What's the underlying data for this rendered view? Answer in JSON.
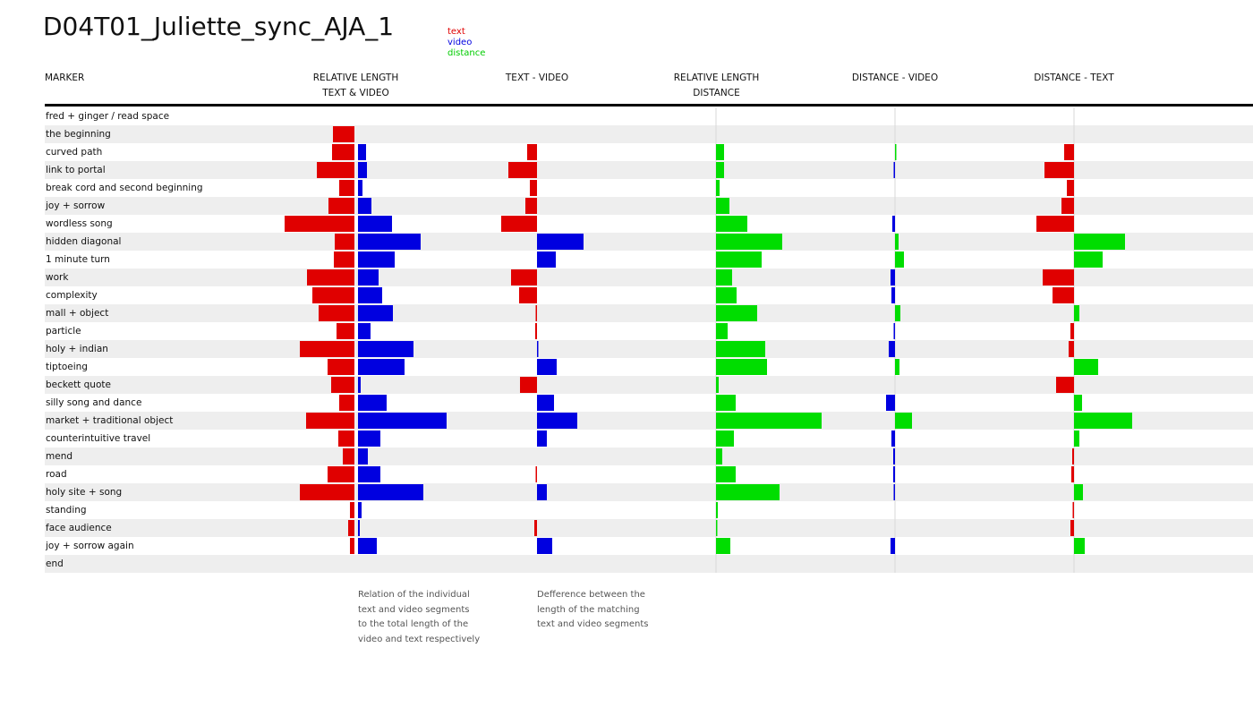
{
  "title": "D04T01_Juliette_sync_AJA_1",
  "legend": {
    "text": {
      "label": "text",
      "color": "#e00000"
    },
    "video": {
      "label": "video",
      "color": "#0000e0"
    },
    "distance": {
      "label": "distance",
      "color": "#00dd00"
    }
  },
  "headers": {
    "marker": "MARKER",
    "rel_tv_1": "RELATIVE LENGTH",
    "rel_tv_2": "TEXT & VIDEO",
    "text_video": "TEXT - VIDEO",
    "rel_dist_1": "RELATIVE LENGTH",
    "rel_dist_2": "DISTANCE",
    "dist_video": "DISTANCE - VIDEO",
    "dist_text": "DISTANCE - TEXT"
  },
  "notes": {
    "relation": [
      "Relation of the individual",
      "text and video segments",
      "to the total length of the",
      "video and text respectively"
    ],
    "difference": [
      "Defference between the",
      "length of the matching",
      "text and video segments"
    ]
  },
  "chart_data": {
    "type": "bar",
    "units": "relative (estimated from bar lengths)",
    "categories": [
      "fred + ginger / read space",
      "the beginning",
      "curved path",
      "link to portal",
      "break cord and second beginning",
      "joy + sorrow",
      "wordless song",
      "hidden diagonal",
      "1 minute turn",
      "work",
      "complexity",
      "mall + object",
      "particle",
      "holy + indian",
      "tiptoeing",
      "beckett quote",
      "silly song and dance",
      "market + traditional object",
      "counterintuitive travel",
      "mend",
      "road",
      "holy site + song",
      "standing",
      "face audience",
      "joy + sorrow again",
      "end"
    ],
    "series": [
      {
        "name": "text",
        "values": [
          0,
          0.24,
          0.25,
          0.42,
          0.17,
          0.29,
          0.78,
          0.22,
          0.23,
          0.53,
          0.47,
          0.4,
          0.2,
          0.61,
          0.3,
          0.26,
          0.17,
          0.54,
          0.18,
          0.13,
          0.3,
          0.61,
          0.05,
          0.07,
          0.05,
          0
        ]
      },
      {
        "name": "video",
        "values": [
          0,
          0,
          0.09,
          0.1,
          0.05,
          0.15,
          0.38,
          0.7,
          0.41,
          0.23,
          0.27,
          0.39,
          0.14,
          0.62,
          0.52,
          0.03,
          0.32,
          0.99,
          0.25,
          0.11,
          0.25,
          0.73,
          0.04,
          0.02,
          0.21,
          0
        ]
      },
      {
        "name": "text - video",
        "values": [
          0,
          0,
          -0.11,
          -0.32,
          -0.08,
          -0.13,
          -0.4,
          0.52,
          0.21,
          -0.29,
          -0.2,
          -0.01,
          -0.02,
          0.01,
          0.22,
          -0.19,
          0.19,
          0.45,
          0.11,
          0,
          -0.01,
          0.11,
          0,
          -0.03,
          0.17,
          0
        ]
      },
      {
        "name": "relative length distance",
        "values": [
          0,
          0,
          0.09,
          0.09,
          0.04,
          0.15,
          0.35,
          0.74,
          0.51,
          0.18,
          0.23,
          0.46,
          0.13,
          0.55,
          0.57,
          0.03,
          0.22,
          1.18,
          0.2,
          0.07,
          0.22,
          0.71,
          0.02,
          0.01,
          0.16,
          0
        ]
      },
      {
        "name": "distance - video",
        "values": [
          0,
          0,
          0.01,
          -0.01,
          0,
          0,
          -0.03,
          0.04,
          0.1,
          -0.05,
          -0.04,
          0.06,
          -0.01,
          -0.07,
          0.05,
          0,
          -0.1,
          0.19,
          -0.04,
          -0.02,
          -0.02,
          -0.01,
          0,
          0,
          -0.05,
          0
        ]
      },
      {
        "name": "distance - text",
        "values": [
          0,
          0,
          -0.11,
          -0.33,
          -0.08,
          -0.14,
          -0.42,
          0.57,
          0.32,
          -0.35,
          -0.24,
          0.06,
          -0.04,
          -0.06,
          0.27,
          -0.2,
          0.09,
          0.65,
          0.06,
          -0.02,
          -0.03,
          0.1,
          -0.01,
          -0.04,
          0.12,
          0
        ]
      }
    ]
  }
}
